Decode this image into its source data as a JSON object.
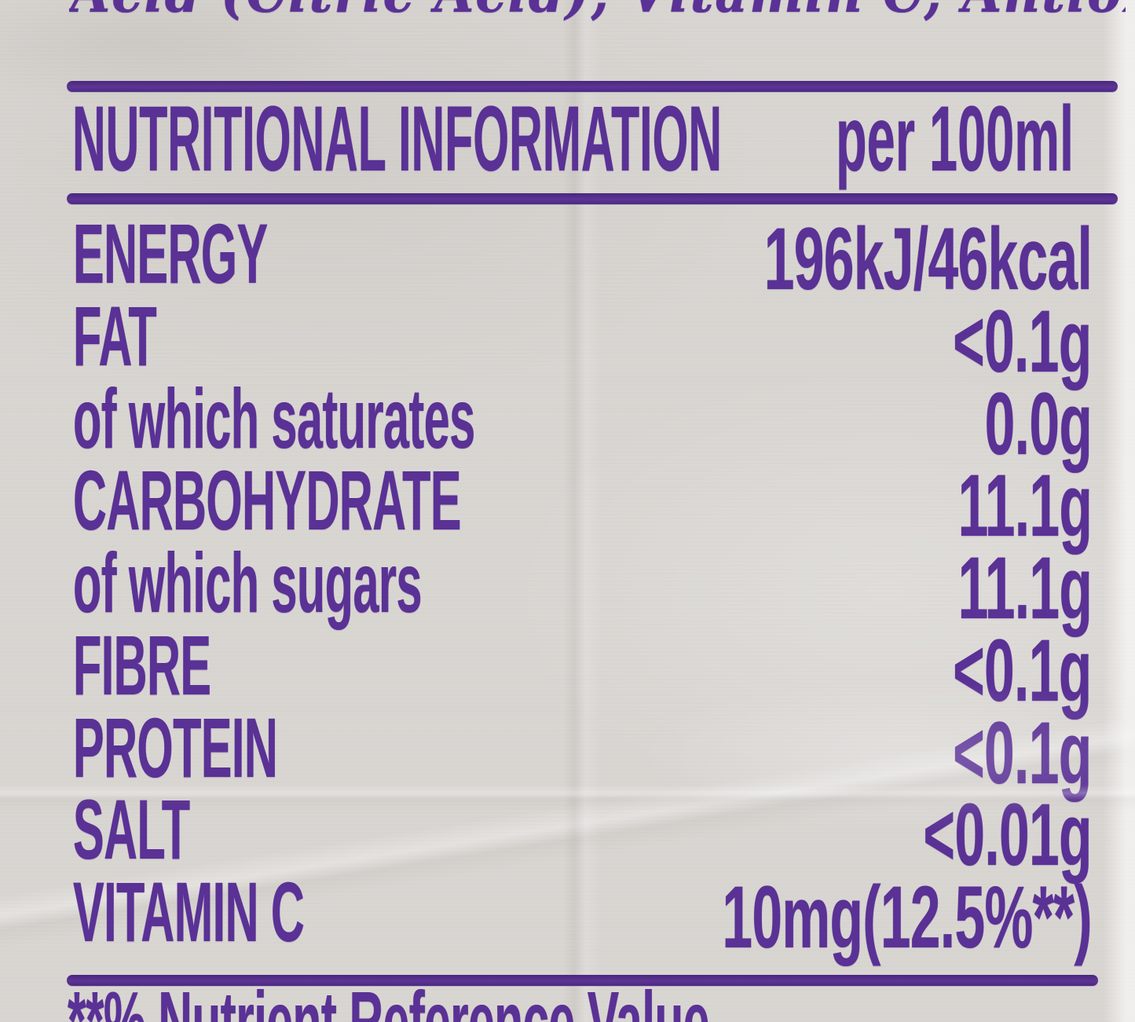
{
  "colors": {
    "ink": "#5a3195",
    "paper": "#d9d6d2"
  },
  "top_cropped_line": "Acid (Citric Acid), Vitamin C, Antioxidants",
  "header": {
    "title": "NUTRITIONAL INFORMATION",
    "per": "per 100ml"
  },
  "rows": [
    {
      "label": "ENERGY",
      "value": "196kJ/46kcal"
    },
    {
      "label": "FAT",
      "value": "<0.1g"
    },
    {
      "label": "of which saturates",
      "value": "0.0g"
    },
    {
      "label": "CARBOHYDRATE",
      "value": "11.1g"
    },
    {
      "label": "of which sugars",
      "value": "11.1g"
    },
    {
      "label": "FIBRE",
      "value": "<0.1g"
    },
    {
      "label": "PROTEIN",
      "value": "<0.1g"
    },
    {
      "label": "SALT",
      "value": "<0.01g"
    },
    {
      "label": "VITAMIN C",
      "value": "10mg(12.5%**)"
    }
  ],
  "footnote": "**% Nutrient Reference Value"
}
